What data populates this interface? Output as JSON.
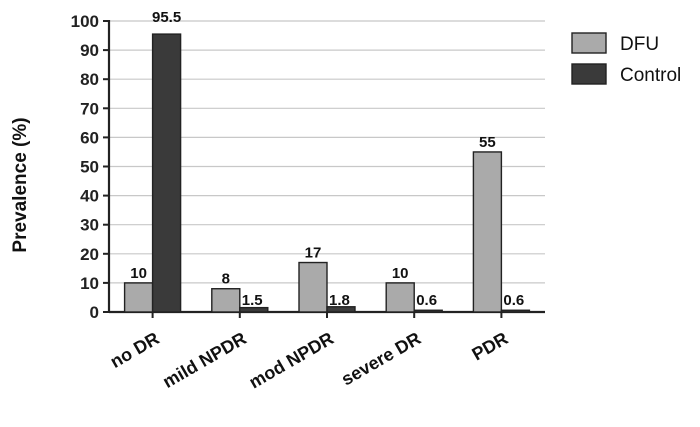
{
  "chart_data": {
    "type": "bar",
    "title": "",
    "xlabel": "",
    "ylabel": "Prevalence (%)",
    "ylim": [
      0,
      100
    ],
    "yticks": [
      0,
      10,
      20,
      30,
      40,
      50,
      60,
      70,
      80,
      90,
      100
    ],
    "grid": true,
    "legend_position": "top-right",
    "categories": [
      "no DR",
      "mild NPDR",
      "mod NPDR",
      "severe DR",
      "PDR"
    ],
    "series": [
      {
        "name": "DFU",
        "color": "#aaaaaa",
        "values": [
          10,
          8,
          17,
          10,
          55
        ],
        "labels": [
          "10",
          "8",
          "17",
          "10",
          "55"
        ]
      },
      {
        "name": "Control",
        "color": "#3a3a3a",
        "values": [
          95.5,
          1.5,
          1.8,
          0.6,
          0.6
        ],
        "labels": [
          "95.5",
          "1.5",
          "1.8",
          "0.6",
          "0.6"
        ]
      }
    ]
  }
}
